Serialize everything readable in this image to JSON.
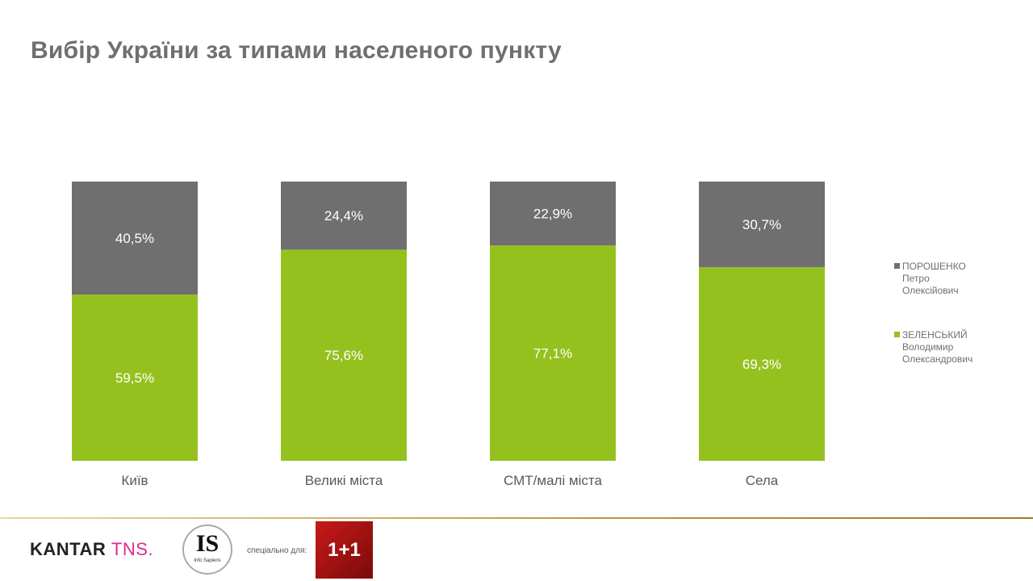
{
  "title": "Вибір України за типами населеного пункту",
  "chart_data": {
    "type": "bar",
    "stacked": true,
    "title": "Вибір України за типами населеного пункту",
    "categories": [
      "Київ",
      "Великі міста",
      "СМТ/малі міста",
      "Села"
    ],
    "series": [
      {
        "name": "ЗЕЛЕНСЬКИЙ Володимир Олександрович",
        "color": "#95c11f",
        "values": [
          59.5,
          75.6,
          77.1,
          69.3
        ],
        "labels": [
          "59,5%",
          "75,6%",
          "77,1%",
          "69,3%"
        ]
      },
      {
        "name": "ПОРОШЕНКО Петро Олексійович",
        "color": "#6f6f6f",
        "values": [
          40.5,
          24.4,
          22.9,
          30.7
        ],
        "labels": [
          "40,5%",
          "24,4%",
          "22,9%",
          "30,7%"
        ]
      }
    ],
    "ylim": [
      0,
      100
    ],
    "grid": false,
    "legend_placement": "right"
  },
  "legend": [
    {
      "line1": "ПОРОШЕНКО",
      "line2": "Петро",
      "line3": "Олексійович",
      "color": "#6f6f6f"
    },
    {
      "line1": "ЗЕЛЕНСЬКИЙ",
      "line2": "Володимир",
      "line3": "Олександрович",
      "color": "#95c11f"
    }
  ],
  "footer": {
    "kantar": "KANTAR",
    "tns": "TNS.",
    "is_big": "IS",
    "is_small": "Info Sapiens",
    "special": "спеціально для:",
    "channel": "1+1"
  }
}
